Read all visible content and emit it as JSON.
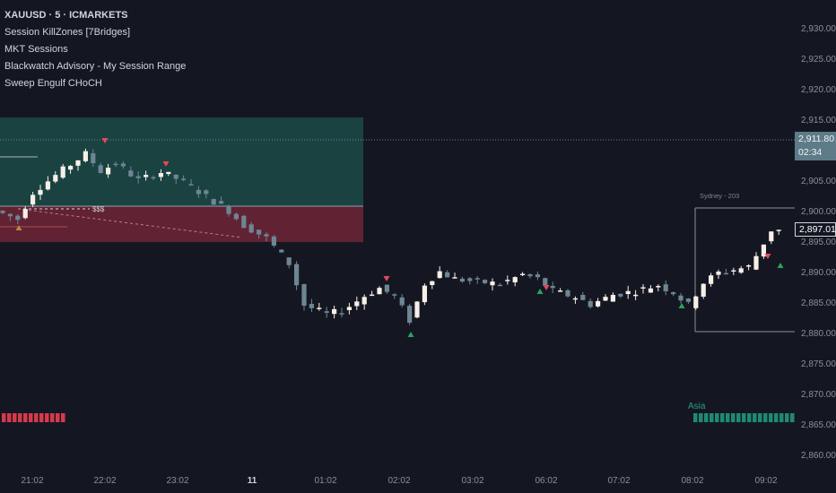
{
  "legend": {
    "symbol": "XAUUSD · 5 · ICMARKETS",
    "indicators": [
      "Session KillZones [7Bridges]",
      "MKT Sessions",
      "Blackwatch Advisory - My Session Range",
      "Sweep Engulf CHoCH"
    ]
  },
  "price_axis": {
    "ticks": [
      "2,930.00",
      "2,925.00",
      "2,920.00",
      "2,915.00",
      "2,905.00",
      "2,900.00",
      "2,895.00",
      "2,890.00",
      "2,885.00",
      "2,880.00",
      "2,875.00",
      "2,870.00",
      "2,865.00",
      "2,860.00"
    ],
    "last_price": "2,911.80",
    "countdown": "02:34",
    "current_price": "2,897.01"
  },
  "time_axis": {
    "ticks": [
      "21:02",
      "22:02",
      "23:02",
      "11",
      "01:02",
      "02:02",
      "03:02",
      "06:02",
      "07:02",
      "08:02",
      "09:02"
    ]
  },
  "annotations": {
    "sweep_label": "$$$",
    "sydney_label": "Sydney - 203",
    "asia_label": "Asia"
  },
  "colors": {
    "background": "#141721",
    "bull_candle": "#f7efe8",
    "bear_candle": "#6e8693",
    "up_marker": "#26a65b",
    "down_marker": "#e8485b",
    "session_green": "#1a4a46",
    "session_red": "#6e2636"
  }
}
